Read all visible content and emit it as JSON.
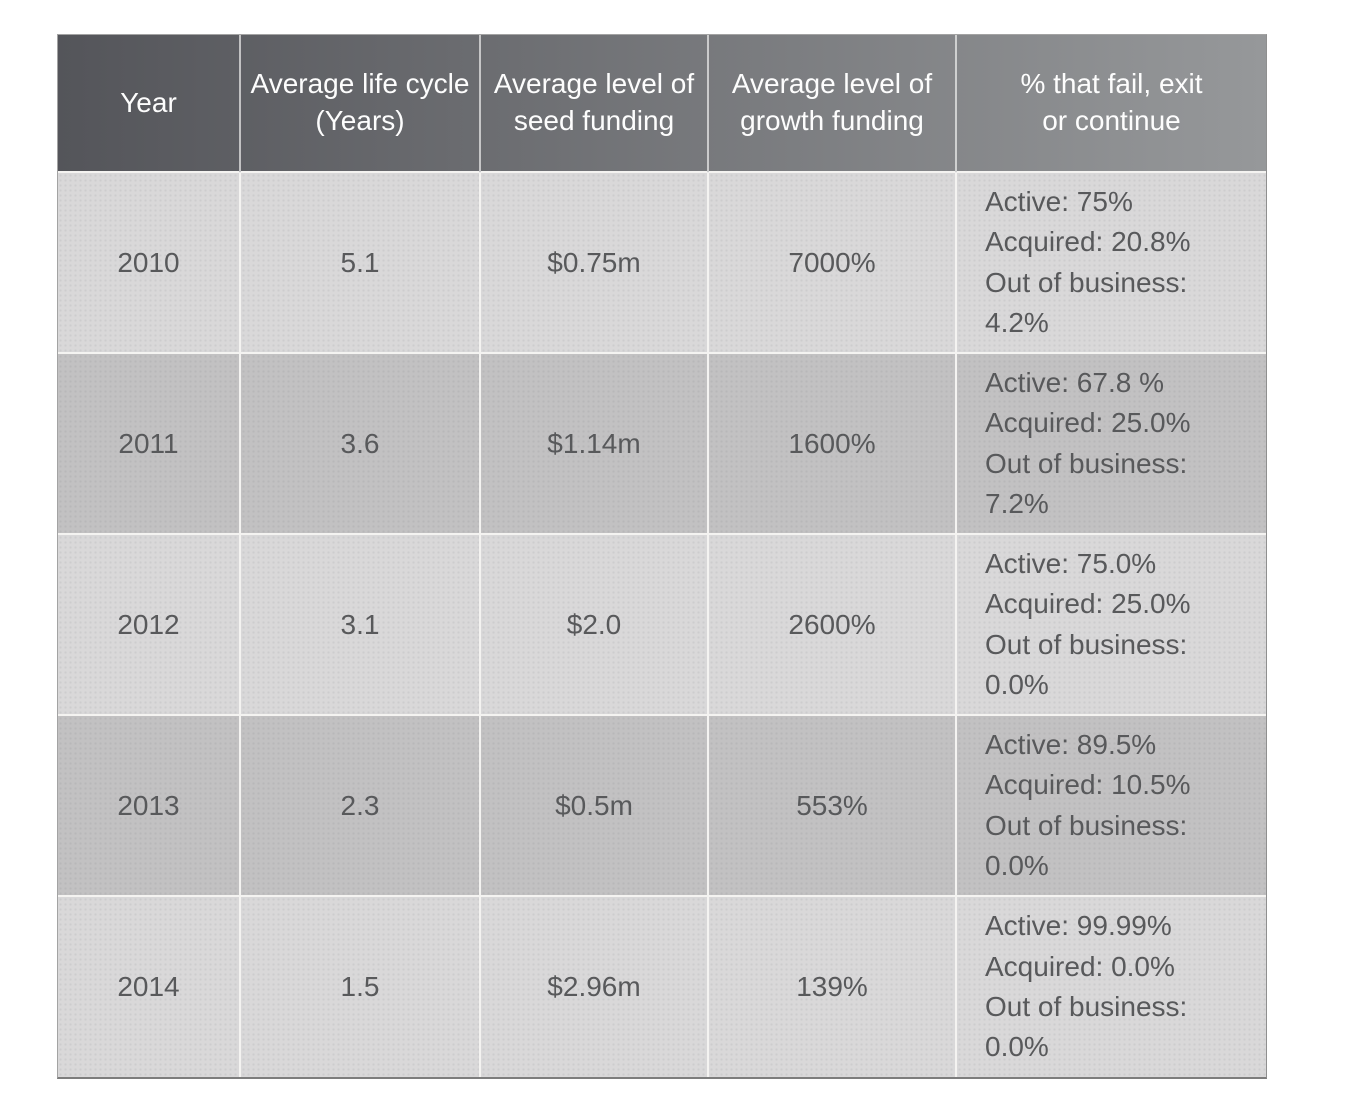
{
  "chart_data": {
    "type": "table",
    "title": "",
    "columns": [
      "Year",
      "Average life cycle\n(Years)",
      "Average level of\nseed funding",
      "Average level of\ngrowth funding",
      "% that fail, exit\nor continue"
    ],
    "rows": [
      {
        "year": "2010",
        "life_cycle": "5.1",
        "seed_funding": "$0.75m",
        "growth_funding": "7000%",
        "status": [
          "Active: 75%",
          "Acquired: 20.8%",
          "Out of business: 4.2%"
        ]
      },
      {
        "year": "2011",
        "life_cycle": "3.6",
        "seed_funding": "$1.14m",
        "growth_funding": "1600%",
        "status": [
          "Active: 67.8 %",
          "Acquired: 25.0%",
          "Out of business: 7.2%"
        ]
      },
      {
        "year": "2012",
        "life_cycle": "3.1",
        "seed_funding": "$2.0",
        "growth_funding": "2600%",
        "status": [
          "Active: 75.0%",
          "Acquired: 25.0%",
          "Out of business: 0.0%"
        ]
      },
      {
        "year": "2013",
        "life_cycle": "2.3",
        "seed_funding": "$0.5m",
        "growth_funding": "553%",
        "status": [
          "Active: 89.5%",
          "Acquired: 10.5%",
          "Out of business: 0.0%"
        ]
      },
      {
        "year": "2014",
        "life_cycle": "1.5",
        "seed_funding": "$2.96m",
        "growth_funding": "139%",
        "status": [
          "Active: 99.99%",
          "Acquired: 0.0%",
          "Out of business: 0.0%"
        ]
      }
    ],
    "layout": {
      "grid": "white 2px separators",
      "header_style": "dark-to-light horizontal gradient, white text",
      "row_striping": "light #d9d8d9 / dark #c2c1c2 alternating"
    }
  },
  "colors": {
    "header_gradient_start": "#54555a",
    "header_gradient_end": "#96989a",
    "header_text": "#fdfdfd",
    "row_light": "#d9d8d9",
    "row_dark": "#c2c1c2",
    "body_text": "#58595b",
    "divider": "#f4f3f1"
  }
}
